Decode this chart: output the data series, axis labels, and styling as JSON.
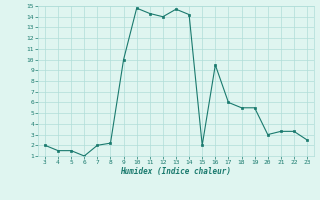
{
  "xlabel": "Humidex (Indice chaleur)",
  "x": [
    3,
    4,
    5,
    6,
    7,
    8,
    9,
    10,
    11,
    12,
    13,
    14,
    15,
    16,
    17,
    18,
    19,
    20,
    21,
    22,
    23
  ],
  "y": [
    2,
    1.5,
    1.5,
    1,
    2,
    2.2,
    10,
    14.8,
    14.3,
    14,
    14.7,
    14.2,
    2,
    9.5,
    6,
    5.5,
    5.5,
    3,
    3.3,
    3.3,
    2.5
  ],
  "ylim": [
    1,
    15
  ],
  "xlim": [
    2.5,
    23.5
  ],
  "yticks": [
    1,
    2,
    3,
    4,
    5,
    6,
    7,
    8,
    9,
    10,
    11,
    12,
    13,
    14,
    15
  ],
  "xticks": [
    3,
    4,
    5,
    6,
    7,
    8,
    9,
    10,
    11,
    12,
    13,
    14,
    15,
    16,
    17,
    18,
    19,
    20,
    21,
    22,
    23
  ],
  "line_color": "#1a7a6e",
  "marker_color": "#1a7a6e",
  "bg_color": "#dff5f0",
  "grid_color": "#b0ddd8",
  "font_color": "#1a7a6e"
}
